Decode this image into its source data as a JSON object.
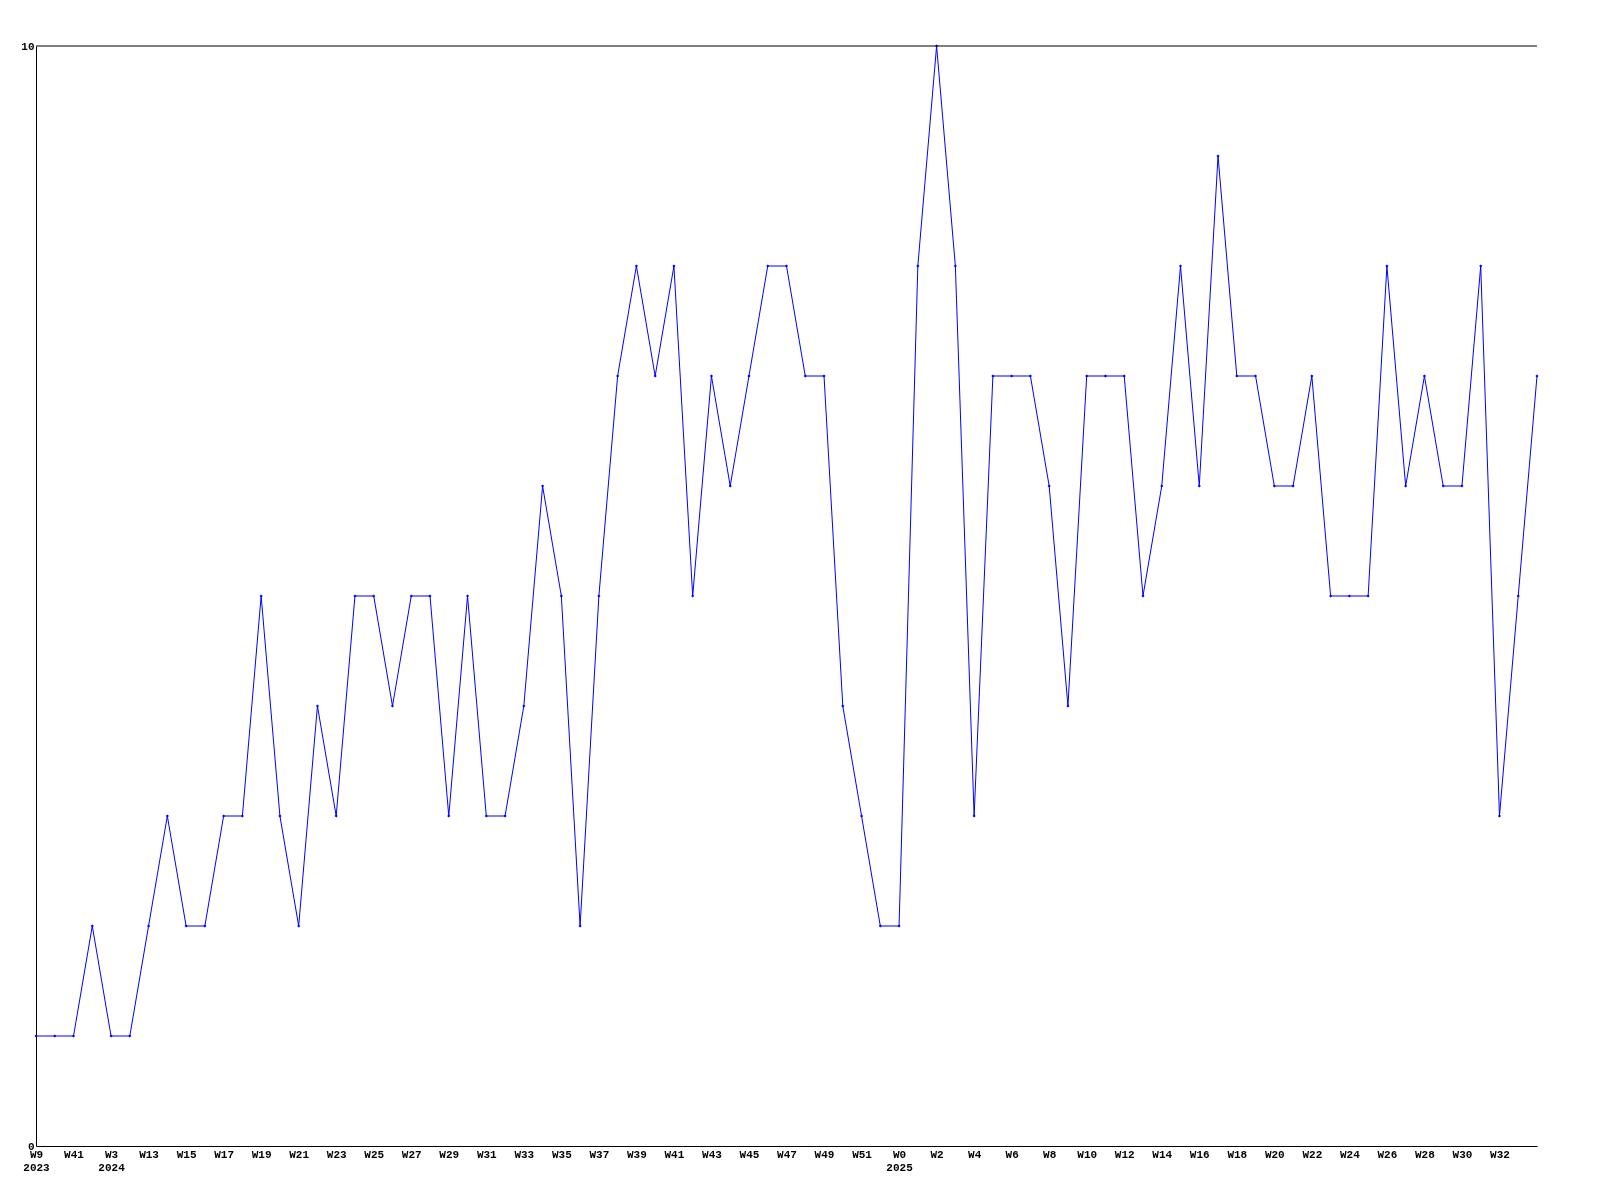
{
  "chart_data": {
    "type": "line",
    "categories": [
      "W9\n2023",
      null,
      "W41",
      null,
      "W3\n2024",
      null,
      "W13",
      null,
      "W15",
      null,
      "W17",
      null,
      "W19",
      null,
      "W21",
      null,
      "W23",
      null,
      "W25",
      null,
      "W27",
      null,
      "W29",
      null,
      "W31",
      null,
      "W33",
      null,
      "W35",
      null,
      "W37",
      null,
      "W39",
      null,
      "W41",
      null,
      "W43",
      null,
      "W45",
      null,
      "W47",
      null,
      "W49",
      null,
      "W51",
      null,
      "W0\n2025",
      null,
      "W2",
      null,
      "W4",
      null,
      "W6",
      null,
      "W8",
      null,
      "W10",
      null,
      "W12",
      null,
      "W14",
      null,
      "W16",
      null,
      "W18",
      null,
      "W20",
      null,
      "W22",
      null,
      "W24",
      null,
      "W26",
      null,
      "W28",
      null,
      "W30",
      null,
      "W32",
      null,
      null
    ],
    "series": [
      {
        "color": "#0000ff",
        "values": [
          1,
          1,
          1,
          2,
          1,
          1,
          2,
          3,
          2,
          2,
          3,
          3,
          5,
          3,
          2,
          4,
          3,
          5,
          5,
          4,
          5,
          5,
          3,
          5,
          3,
          3,
          4,
          6,
          5,
          2,
          5,
          7,
          8,
          7,
          8,
          5,
          7,
          6,
          7,
          8,
          8,
          7,
          7,
          4,
          3,
          2,
          2,
          8,
          10,
          8,
          3,
          7,
          7,
          7,
          6,
          4,
          7,
          7,
          7,
          5,
          6,
          8,
          6,
          9,
          7,
          7,
          6,
          6,
          7,
          5,
          5,
          5,
          8,
          6,
          7,
          6,
          6,
          8,
          3,
          5,
          7
        ]
      }
    ],
    "ylim": [
      0,
      10
    ],
    "yticks": [
      0,
      10
    ],
    "grid": false,
    "marker": "diamond",
    "line_style": "solid"
  }
}
